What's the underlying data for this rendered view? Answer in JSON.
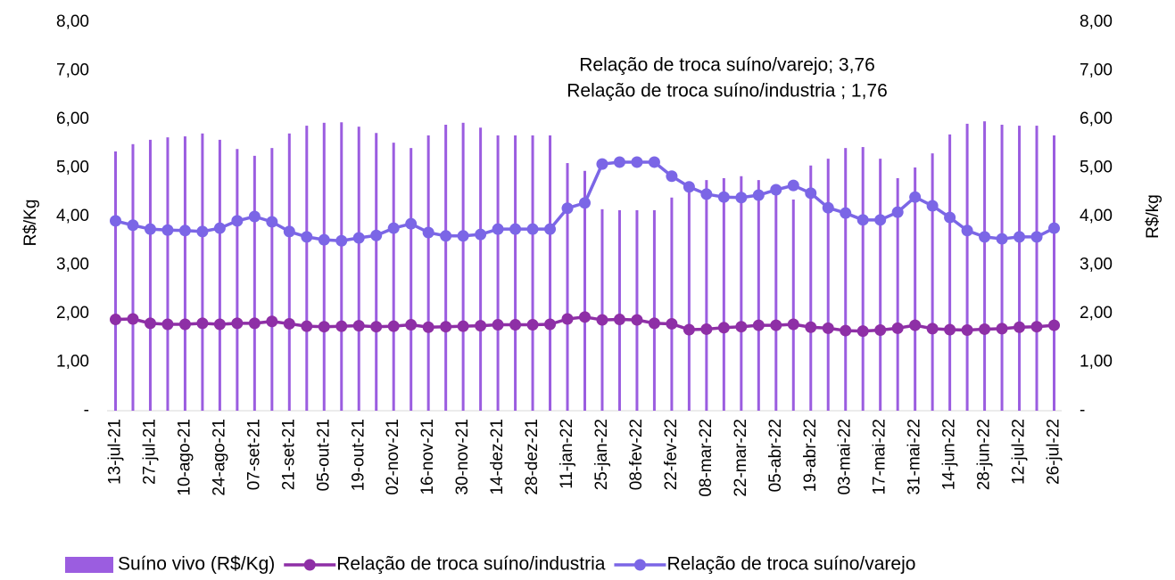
{
  "chart_data": {
    "type": "bar",
    "y_label": "R$/Kg",
    "y2_label": "R$/kg",
    "annotations": [
      "Relação de troca suíno/varejo; 3,76",
      "Relação de troca suíno/industria ; 1,76"
    ],
    "categories": [
      "13-jul-21",
      null,
      "27-jul-21",
      null,
      "10-ago-21",
      null,
      "24-ago-21",
      null,
      "07-set-21",
      null,
      "21-set-21",
      null,
      "05-out-21",
      null,
      "19-out-21",
      null,
      "02-nov-21",
      null,
      "16-nov-21",
      null,
      "30-nov-21",
      null,
      "14-dez-21",
      null,
      "28-dez-21",
      null,
      "11-jan-22",
      null,
      "25-jan-22",
      null,
      "08-fev-22",
      null,
      "22-fev-22",
      null,
      "08-mar-22",
      null,
      "22-mar-22",
      null,
      "05-abr-22",
      null,
      "19-abr-22",
      null,
      "03-mai-22",
      null,
      "17-mai-22",
      null,
      "31-mai-22",
      null,
      "14-jun-22",
      null,
      "28-jun-22",
      null,
      "12-jul-22",
      null,
      "26-jul-22"
    ],
    "series": [
      {
        "name": "Suíno vivo (R$/Kg)",
        "type": "bar",
        "color": "#9b5de0",
        "values": [
          5.34,
          5.49,
          5.58,
          5.63,
          5.65,
          5.71,
          5.58,
          5.39,
          5.25,
          5.41,
          5.71,
          5.87,
          5.93,
          5.94,
          5.85,
          5.72,
          5.52,
          5.41,
          5.67,
          5.89,
          5.93,
          5.83,
          5.67,
          5.67,
          5.67,
          5.67,
          5.1,
          4.94,
          4.15,
          4.13,
          4.13,
          4.13,
          4.39,
          4.72,
          4.75,
          4.79,
          4.83,
          4.75,
          4.57,
          4.35,
          5.05,
          5.19,
          5.41,
          5.43,
          5.19,
          4.79,
          5.01,
          5.3,
          5.69,
          5.91,
          5.96,
          5.89,
          5.87,
          5.87,
          5.67
        ]
      },
      {
        "name": "Relação de troca suíno/industria",
        "type": "line",
        "color": "#8e2fa6",
        "values": [
          1.88,
          1.89,
          1.8,
          1.78,
          1.78,
          1.8,
          1.78,
          1.8,
          1.8,
          1.84,
          1.79,
          1.74,
          1.73,
          1.74,
          1.75,
          1.73,
          1.74,
          1.77,
          1.72,
          1.73,
          1.74,
          1.75,
          1.77,
          1.77,
          1.77,
          1.78,
          1.89,
          1.93,
          1.87,
          1.88,
          1.87,
          1.8,
          1.79,
          1.67,
          1.68,
          1.71,
          1.73,
          1.76,
          1.76,
          1.78,
          1.72,
          1.7,
          1.65,
          1.64,
          1.66,
          1.7,
          1.76,
          1.69,
          1.67,
          1.66,
          1.68,
          1.69,
          1.72,
          1.73,
          1.76
        ]
      },
      {
        "name": "Relação de troca suíno/varejo",
        "type": "line",
        "color": "#7b66e6",
        "values": [
          3.91,
          3.82,
          3.74,
          3.72,
          3.71,
          3.69,
          3.76,
          3.91,
          4.0,
          3.89,
          3.69,
          3.58,
          3.52,
          3.5,
          3.56,
          3.61,
          3.76,
          3.85,
          3.67,
          3.6,
          3.6,
          3.63,
          3.74,
          3.74,
          3.74,
          3.74,
          4.17,
          4.28,
          5.08,
          5.12,
          5.12,
          5.12,
          4.83,
          4.61,
          4.46,
          4.4,
          4.39,
          4.44,
          4.55,
          4.64,
          4.48,
          4.18,
          4.07,
          3.93,
          3.93,
          4.09,
          4.4,
          4.22,
          3.98,
          3.71,
          3.58,
          3.54,
          3.58,
          3.58,
          3.76
        ]
      }
    ],
    "ylim": [
      0,
      8
    ],
    "yticks": [
      {
        "value": 0,
        "label": "-"
      },
      {
        "value": 1,
        "label": "1,00"
      },
      {
        "value": 2,
        "label": "2,00"
      },
      {
        "value": 3,
        "label": "3,00"
      },
      {
        "value": 4,
        "label": "4,00"
      },
      {
        "value": 5,
        "label": "5,00"
      },
      {
        "value": 6,
        "label": "6,00"
      },
      {
        "value": 7,
        "label": "7,00"
      },
      {
        "value": 8,
        "label": "8,00"
      }
    ],
    "y2lim": [
      0,
      8
    ],
    "y2ticks": [
      {
        "value": 0,
        "label": "-"
      },
      {
        "value": 1,
        "label": "1,00"
      },
      {
        "value": 2,
        "label": "2,00"
      },
      {
        "value": 3,
        "label": "3,00"
      },
      {
        "value": 4,
        "label": "4,00"
      },
      {
        "value": 5,
        "label": "5,00"
      },
      {
        "value": 6,
        "label": "6,00"
      },
      {
        "value": 7,
        "label": "7,00"
      },
      {
        "value": 8,
        "label": "8,00"
      }
    ],
    "grid": false,
    "legend": "bottom"
  }
}
